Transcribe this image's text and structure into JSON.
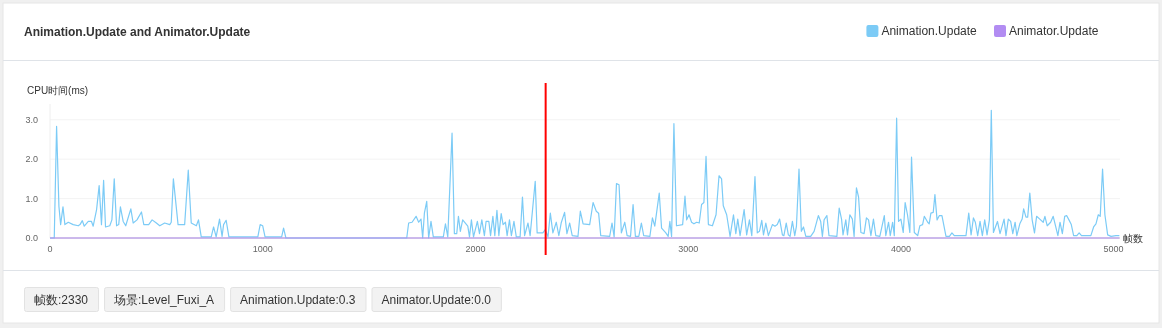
{
  "chart_data": {
    "type": "line",
    "title": "Animation.Update and Animator.Update",
    "ylabel": "CPU时间(ms)",
    "xlabel": "帧数",
    "xlim": [
      0,
      5030
    ],
    "xticks": [
      0,
      1000,
      2000,
      3000,
      4000,
      5000
    ],
    "ylim": [
      0,
      3.4
    ],
    "yticks": [
      {
        "value": 0,
        "label": "0.0"
      },
      {
        "value": 1,
        "label": "1.0"
      },
      {
        "value": 2,
        "label": "2.0"
      },
      {
        "value": 3,
        "label": "3.0"
      }
    ],
    "grid": "y",
    "legend": "top right",
    "marker": "none",
    "line_style": "solid",
    "series": [
      {
        "name": "Animation.Update",
        "color": "#7ccbf6",
        "x": [
          0,
          20,
          31,
          42,
          50,
          61,
          70,
          86,
          109,
          133,
          141,
          152,
          161,
          180,
          195,
          203,
          219,
          231,
          242,
          252,
          261,
          281,
          291,
          302,
          313,
          323,
          331,
          344,
          356,
          380,
          391,
          409,
          430,
          441,
          464,
          480,
          500,
          516,
          539,
          563,
          570,
          580,
          602,
          633,
          650,
          664,
          688,
          698,
          711,
          758,
          769,
          781,
          797,
          809,
          816,
          828,
          841,
          977,
          988,
          1000,
          1011,
          1089,
          1098,
          1109,
          1677,
          1686,
          1702,
          1721,
          1733,
          1744,
          1752,
          1760,
          1771,
          1780,
          1791,
          1802,
          1849,
          1859,
          1870,
          1890,
          1901,
          1912,
          1920,
          1929,
          1940,
          1964,
          1972,
          1981,
          1991,
          2009,
          2019,
          2030,
          2042,
          2050,
          2063,
          2071,
          2082,
          2091,
          2101,
          2110,
          2121,
          2130,
          2141,
          2149,
          2160,
          2169,
          2181,
          2192,
          2210,
          2221,
          2231,
          2247,
          2257,
          2281,
          2290,
          2317,
          2328,
          2341,
          2352,
          2364,
          2380,
          2392,
          2403,
          2419,
          2430,
          2443,
          2455,
          2482,
          2493,
          2506,
          2537,
          2553,
          2568,
          2579,
          2589,
          2631,
          2642,
          2652,
          2663,
          2675,
          2686,
          2702,
          2713,
          2729,
          2741,
          2752,
          2768,
          2780,
          2791,
          2820,
          2832,
          2843,
          2864,
          2875,
          2895,
          2906,
          2914,
          2922,
          2933,
          2945,
          2974,
          2985,
          2993,
          3004,
          3016,
          3027,
          3040,
          3052,
          3063,
          3074,
          3084,
          3095,
          3114,
          3131,
          3145,
          3157,
          3165,
          3181,
          3197,
          3213,
          3224,
          3233,
          3244,
          3263,
          3275,
          3288,
          3299,
          3314,
          3325,
          3335,
          3346,
          3354,
          3365,
          3377,
          3396,
          3408,
          3419,
          3430,
          3443,
          3450,
          3461,
          3471,
          3479,
          3490,
          3501,
          3509,
          3521,
          3532,
          3542,
          3553,
          3576,
          3592,
          3612,
          3623,
          3631,
          3639,
          3652,
          3662,
          3699,
          3710,
          3721,
          3728,
          3741,
          3749,
          3760,
          3772,
          3780,
          3791,
          3801,
          3812,
          3827,
          3838,
          3848,
          3859,
          3871,
          3882,
          3901,
          3922,
          3929,
          3942,
          3950,
          3961,
          3969,
          3980,
          3989,
          4000,
          4011,
          4020,
          4031,
          4042,
          4050,
          4063,
          4079,
          4089,
          4102,
          4110,
          4126,
          4133,
          4141,
          4152,
          4160,
          4170,
          4181,
          4193,
          4212,
          4228,
          4240,
          4251,
          4306,
          4319,
          4330,
          4341,
          4350,
          4361,
          4372,
          4383,
          4394,
          4405,
          4416,
          4425,
          4435,
          4454,
          4466,
          4485,
          4494,
          4505,
          4516,
          4526,
          4537,
          4545,
          4559,
          4570,
          4577,
          4588,
          4596,
          4606,
          4617,
          4628,
          4638,
          4653,
          4669,
          4677,
          4688,
          4704,
          4716,
          4727,
          4738,
          4748,
          4759,
          4770,
          4779,
          4790,
          4801,
          4812,
          4827,
          4838,
          4849,
          4893,
          4906,
          4917,
          4928,
          4937,
          4948,
          4959,
          4972,
          4988,
          5011,
          5027
        ],
        "values": [
          0,
          0,
          2.83,
          0.8,
          0.34,
          0.79,
          0.34,
          0.4,
          0.34,
          0.31,
          0.34,
          0.44,
          0.3,
          0.42,
          0.42,
          0.3,
          0.72,
          1.33,
          0.34,
          1.46,
          0.28,
          0.31,
          0.46,
          1.5,
          0.31,
          0.34,
          0.79,
          0.42,
          0.31,
          0.74,
          0.38,
          0.46,
          0.66,
          0.34,
          0.34,
          0.46,
          0.38,
          0.31,
          0.38,
          0.34,
          0.4,
          1.5,
          0.34,
          0.34,
          1.72,
          0.38,
          0.31,
          0.46,
          0.03,
          0.03,
          0.28,
          0.03,
          0.48,
          0.04,
          0.34,
          0.45,
          0.03,
          0.03,
          0.34,
          0.31,
          0.03,
          0.03,
          0.25,
          0,
          0,
          0.38,
          0.4,
          0.55,
          0.4,
          0.48,
          0,
          0.63,
          0.93,
          0,
          0.42,
          0.03,
          0.03,
          0.36,
          0.03,
          2.66,
          0.11,
          0.11,
          0.55,
          0.17,
          0.46,
          0.3,
          0.03,
          0.46,
          0.03,
          0.42,
          0.11,
          0.46,
          0.06,
          0.42,
          0.42,
          0.06,
          0.55,
          0.06,
          0.7,
          0.06,
          0.62,
          0.34,
          0.4,
          0.06,
          0.46,
          0.06,
          0.42,
          0.03,
          0.03,
          1.04,
          0.06,
          0.38,
          0.06,
          1.44,
          0.13,
          0.13,
          0.21,
          0.03,
          0.63,
          0.13,
          0.4,
          0.06,
          0.38,
          0.65,
          0.11,
          0.38,
          0.06,
          0.04,
          0.68,
          0.36,
          0.34,
          0.9,
          0.68,
          0.63,
          0.06,
          0.04,
          0.38,
          0.03,
          1.38,
          1.35,
          0.13,
          0.4,
          0.06,
          0.04,
          0.85,
          0.04,
          0.04,
          0.38,
          0.06,
          0.04,
          0.51,
          0.3,
          1.14,
          0.25,
          0.13,
          0.04,
          0.42,
          0.04,
          2.9,
          0.31,
          0.34,
          1.06,
          0.46,
          0.59,
          0.4,
          0.36,
          0.4,
          0.38,
          0.85,
          0.9,
          2.07,
          0.34,
          0.31,
          0.59,
          1.58,
          1.5,
          0.82,
          0.59,
          0.04,
          0.59,
          0.11,
          0.48,
          0.06,
          0.72,
          0.08,
          0.46,
          0.06,
          1.56,
          0.13,
          0.17,
          0.45,
          0.08,
          0.38,
          0.06,
          0.34,
          0.3,
          0.34,
          0.48,
          0.08,
          0.06,
          0.38,
          0.08,
          0.04,
          0.42,
          0.06,
          0.3,
          1.75,
          0.17,
          0.28,
          0.04,
          0.04,
          0.17,
          0.57,
          0.42,
          0.04,
          0.46,
          0.57,
          0.06,
          0.04,
          0.76,
          0.48,
          0.08,
          0.46,
          0.08,
          0.59,
          0.48,
          0.04,
          1.27,
          1.04,
          0.14,
          0.11,
          0.51,
          0.46,
          0.06,
          0.48,
          0.06,
          0.04,
          0.57,
          0.06,
          0.4,
          0.06,
          0.4,
          0.06,
          3.04,
          0.42,
          0.48,
          0.14,
          0.9,
          0.59,
          0.14,
          2.05,
          0.14,
          0.06,
          0.31,
          0.34,
          0.55,
          0.4,
          0.36,
          0.63,
          0.65,
          1.1,
          0.46,
          0.57,
          0.57,
          0.04,
          0.04,
          0.13,
          0.06,
          0.06,
          0.63,
          0.08,
          0.51,
          0.4,
          0.06,
          0.42,
          0.06,
          0.46,
          0.08,
          0.46,
          3.24,
          0.14,
          0.42,
          0.11,
          0.48,
          0.06,
          0.48,
          0.42,
          0.11,
          0.4,
          0.06,
          0.36,
          0.48,
          0.74,
          0.53,
          0.53,
          1.14,
          0.46,
          0.13,
          0.55,
          0.48,
          0.4,
          0.55,
          0.31,
          0.4,
          0.55,
          0.31,
          0.06,
          0.4,
          0.11,
          0.55,
          0.57,
          0.46,
          0.34,
          0.06,
          0.06,
          0.13,
          0.06,
          0.06,
          0.28,
          0.36,
          0.59,
          0.55,
          1.75,
          0.59,
          0.08,
          0.04,
          0.06,
          0.06
        ]
      },
      {
        "name": "Animator.Update",
        "color": "#b28cf2",
        "x": [
          0,
          5027
        ],
        "values": [
          0,
          0
        ]
      }
    ],
    "ref_lines": [
      {
        "axis": "x",
        "value": 2330,
        "color": "#ff0000"
      }
    ],
    "annotations": [
      "帧数:2330",
      "场景:Level_Fuxi_A",
      "Animation.Update:0.3",
      "Animator.Update:0.0"
    ]
  }
}
